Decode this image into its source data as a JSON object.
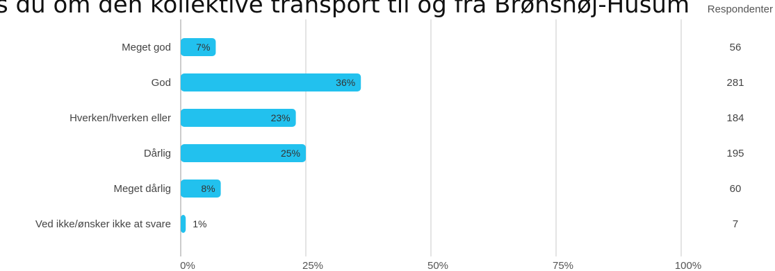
{
  "title": "s du om den kollektive transport til og fra Brønshøj-Husum",
  "respondents_header": "Respondenter",
  "chart_data": {
    "type": "bar",
    "orientation": "horizontal",
    "categories": [
      "Meget god",
      "God",
      "Hverken/hverken eller",
      "Dårlig",
      "Meget dårlig",
      "Ved ikke/ønsker ikke at svare"
    ],
    "values": [
      7,
      36,
      23,
      25,
      8,
      1
    ],
    "value_labels": [
      "7%",
      "36%",
      "23%",
      "25%",
      "8%",
      "1%"
    ],
    "respondents": [
      56,
      281,
      184,
      195,
      60,
      7
    ],
    "x_ticks": [
      "0%",
      "25%",
      "50%",
      "75%",
      "100%"
    ],
    "xlim": [
      0,
      100
    ],
    "bar_color": "#22c1ee",
    "grid": true
  }
}
